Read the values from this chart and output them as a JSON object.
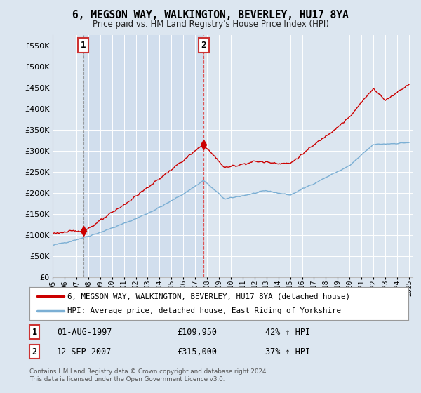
{
  "title": "6, MEGSON WAY, WALKINGTON, BEVERLEY, HU17 8YA",
  "subtitle": "Price paid vs. HM Land Registry's House Price Index (HPI)",
  "legend_line1": "6, MEGSON WAY, WALKINGTON, BEVERLEY, HU17 8YA (detached house)",
  "legend_line2": "HPI: Average price, detached house, East Riding of Yorkshire",
  "sale1_date": "01-AUG-1997",
  "sale1_price": "£109,950",
  "sale1_hpi": "42% ↑ HPI",
  "sale2_date": "12-SEP-2007",
  "sale2_price": "£315,000",
  "sale2_hpi": "37% ↑ HPI",
  "footer": "Contains HM Land Registry data © Crown copyright and database right 2024.\nThis data is licensed under the Open Government Licence v3.0.",
  "hpi_color": "#7bafd4",
  "price_color": "#cc0000",
  "sale1_vline_color": "#888888",
  "sale2_vline_color": "#dd4444",
  "shade_color": "#c8d8ec",
  "background_color": "#dce6f0",
  "plot_bg_color": "#dce6f0",
  "legend_bg": "#ffffff",
  "ylim": [
    0,
    575000
  ],
  "yticks": [
    0,
    50000,
    100000,
    150000,
    200000,
    250000,
    300000,
    350000,
    400000,
    450000,
    500000,
    550000
  ],
  "year_start": 1995,
  "year_end": 2025,
  "sale1_year": 1997.583,
  "sale2_year": 2007.708,
  "sale1_price_val": 109950,
  "sale2_price_val": 315000
}
